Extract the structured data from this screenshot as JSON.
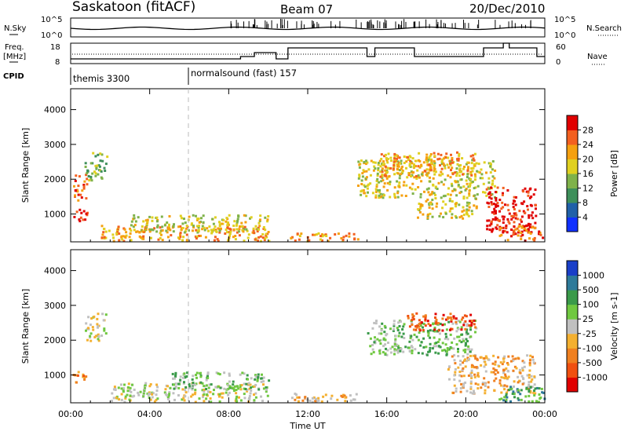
{
  "header": {
    "site": "Saskatoon (fitACF)",
    "beam": "Beam 07",
    "date": "20/Dec/2010"
  },
  "strip_labels": {
    "nsky": "N.Sky",
    "nsky_top": "10^5",
    "nsky_bottom": "10^0",
    "nsky_right_top": "10^5",
    "nsky_right_bottom": "10^0",
    "nsearch": "N.Search",
    "freq": "Freq.",
    "freq_unit": "[MHz]",
    "freq_top": "18",
    "freq_bottom": "8",
    "nave_top": "60",
    "nave_bottom": "0",
    "nave": "Nave",
    "cpid": "CPID",
    "cpid_1": "themis 3300",
    "cpid_2": "normalsound (fast) 157"
  },
  "chart_data": [
    {
      "type": "heatmap",
      "title": "Power",
      "ylabel": "Slant Range [km]",
      "xlabel": "",
      "x_ticks": [
        "00:00",
        "04:00",
        "08:00",
        "12:00",
        "16:00",
        "20:00",
        "00:00"
      ],
      "y_ticks": [
        "1000",
        "2000",
        "3000",
        "4000"
      ],
      "ylim": [
        200,
        4600
      ],
      "xlim_hours": [
        0,
        24
      ],
      "colorbar_label": "Power [dB]",
      "colorbar_ticks": [
        "4",
        "8",
        "12",
        "16",
        "20",
        "24",
        "28"
      ],
      "colorbar_colors": [
        "#1030ff",
        "#2060a8",
        "#3e8f5a",
        "#7fb24a",
        "#e0d020",
        "#f5a010",
        "#f36020",
        "#e00000"
      ],
      "regions_hours_km": [
        {
          "x": [
            0.1,
            0.8
          ],
          "y": [
            800,
            1200
          ],
          "level": 7
        },
        {
          "x": [
            0.1,
            0.8
          ],
          "y": [
            1400,
            2200
          ],
          "level": 6
        },
        {
          "x": [
            0.7,
            1.8
          ],
          "y": [
            2000,
            2800
          ],
          "level": 3
        },
        {
          "x": [
            1.5,
            10.0
          ],
          "y": [
            250,
            700
          ],
          "level": 5
        },
        {
          "x": [
            3.0,
            10.0
          ],
          "y": [
            500,
            1000
          ],
          "level": 4
        },
        {
          "x": [
            11.0,
            14.5
          ],
          "y": [
            250,
            500
          ],
          "level": 5
        },
        {
          "x": [
            14.5,
            21.5
          ],
          "y": [
            1500,
            2600
          ],
          "level": 4
        },
        {
          "x": [
            15.5,
            20.5
          ],
          "y": [
            2100,
            2800
          ],
          "level": 5
        },
        {
          "x": [
            17.5,
            20.5
          ],
          "y": [
            900,
            1500
          ],
          "level": 4
        },
        {
          "x": [
            21.0,
            23.5
          ],
          "y": [
            500,
            1800
          ],
          "level": 7
        },
        {
          "x": [
            21.5,
            24.0
          ],
          "y": [
            250,
            700
          ],
          "level": 6
        }
      ]
    },
    {
      "type": "heatmap",
      "title": "Velocity",
      "ylabel": "Slant Range [km]",
      "xlabel": "Time UT",
      "x_ticks": [
        "00:00",
        "04:00",
        "08:00",
        "12:00",
        "16:00",
        "20:00",
        "00:00"
      ],
      "y_ticks": [
        "1000",
        "2000",
        "3000",
        "4000"
      ],
      "ylim": [
        200,
        4600
      ],
      "xlim_hours": [
        0,
        24
      ],
      "colorbar_label": "Velocity [m s-1]",
      "colorbar_ticks": [
        "1000",
        "500",
        "100",
        "25",
        "-25",
        "-100",
        "-500",
        "-1000"
      ],
      "colorbar_colors": [
        "#1a3fc8",
        "#2e7a9a",
        "#3a9a4a",
        "#70c840",
        "#c0c0c0",
        "#f4b030",
        "#f08020",
        "#f05010",
        "#e00000"
      ],
      "regions_hours_km": [
        {
          "x": [
            0.1,
            0.8
          ],
          "y": [
            800,
            1200
          ],
          "level": 6
        },
        {
          "x": [
            0.7,
            1.8
          ],
          "y": [
            2000,
            2800
          ],
          "level": 4
        },
        {
          "x": [
            2.0,
            10.0
          ],
          "y": [
            250,
            800
          ],
          "level": 4
        },
        {
          "x": [
            5.0,
            10.0
          ],
          "y": [
            600,
            1100
          ],
          "level": 3
        },
        {
          "x": [
            11.0,
            14.5
          ],
          "y": [
            250,
            500
          ],
          "level": 5
        },
        {
          "x": [
            15.0,
            20.5
          ],
          "y": [
            1600,
            2600
          ],
          "level": 3
        },
        {
          "x": [
            17.0,
            20.5
          ],
          "y": [
            2300,
            2800
          ],
          "level": 7
        },
        {
          "x": [
            19.0,
            23.5
          ],
          "y": [
            500,
            1600
          ],
          "level": 5
        },
        {
          "x": [
            21.5,
            24.0
          ],
          "y": [
            250,
            700
          ],
          "level": 2
        }
      ]
    }
  ]
}
